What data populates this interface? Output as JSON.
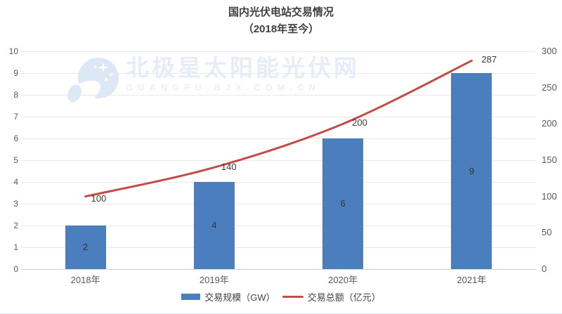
{
  "title": {
    "line1": "国内光伏电站交易情况",
    "line2": "（2018年至今）"
  },
  "watermark": {
    "text": "北极星太阳能光伏网",
    "subtext": "GUANGFU.BJX.COM.CN",
    "logo": "bjx-star-moon-logo",
    "color": "#e7edf7"
  },
  "chart_data": {
    "type": "bar",
    "subtype": "bar-line-combo",
    "title": "国内光伏电站交易情况（2018年至今）",
    "categories": [
      "2018年",
      "2019年",
      "2020年",
      "2021年"
    ],
    "series": [
      {
        "name": "交易规模（GW）",
        "type": "bar",
        "axis": "left",
        "values": [
          2,
          4,
          6,
          9
        ],
        "color": "#4b7ebc"
      },
      {
        "name": "交易总额（亿元）",
        "type": "line",
        "axis": "right",
        "values": [
          100,
          140,
          200,
          287
        ],
        "color": "#c24a47"
      }
    ],
    "left_axis": {
      "min": 0,
      "max": 10,
      "step": 1,
      "ticks": [
        0,
        1,
        2,
        3,
        4,
        5,
        6,
        7,
        8,
        9,
        10
      ]
    },
    "right_axis": {
      "min": 0,
      "max": 300,
      "step": 50,
      "ticks": [
        0,
        50,
        100,
        150,
        200,
        250,
        300
      ]
    },
    "grid": true,
    "legend_position": "bottom",
    "data_labels": true
  },
  "legend": {
    "items": [
      {
        "label": "交易规模（GW）",
        "swatch": "bar",
        "color": "#4b7ebc"
      },
      {
        "label": "交易总额（亿元）",
        "swatch": "line",
        "color": "#c24a47"
      }
    ]
  }
}
